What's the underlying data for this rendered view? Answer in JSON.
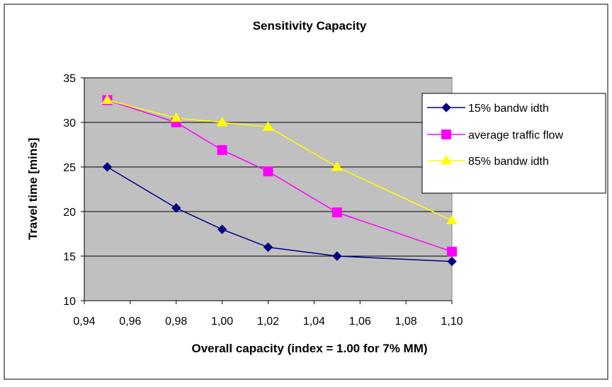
{
  "chart_data": {
    "type": "line",
    "title": "Sensitivity Capacity",
    "xlabel": "Overall capacity (index = 1.00 for 7% MM)",
    "ylabel": "Travel time [mins]",
    "xlim": [
      0.94,
      1.1
    ],
    "ylim": [
      10,
      35
    ],
    "xticks": [
      "0,94",
      "0,96",
      "0,98",
      "1,00",
      "1,02",
      "1,04",
      "1,06",
      "1,08",
      "1,10"
    ],
    "yticks": [
      "10",
      "15",
      "20",
      "25",
      "30",
      "35"
    ],
    "xtick_values": [
      0.94,
      0.96,
      0.98,
      1.0,
      1.02,
      1.04,
      1.06,
      1.08,
      1.1
    ],
    "ytick_values": [
      10,
      15,
      20,
      25,
      30,
      35
    ],
    "x": [
      0.95,
      0.98,
      1.0,
      1.02,
      1.05,
      1.1
    ],
    "grid": "horizontal",
    "plot_background": "#c0c0c0",
    "legend_position": "right",
    "series": [
      {
        "name": "15% bandw idth",
        "color": "#000080",
        "marker": "diamond",
        "values": [
          25.0,
          20.4,
          18.0,
          16.0,
          15.0,
          14.4
        ]
      },
      {
        "name": "average traffic flow",
        "color": "#ff00ff",
        "marker": "square",
        "values": [
          32.5,
          30.0,
          26.9,
          24.5,
          19.9,
          15.5
        ]
      },
      {
        "name": "85% bandw idth",
        "color": "#ffff00",
        "marker": "triangle",
        "values": [
          32.5,
          30.5,
          30.0,
          29.5,
          25.0,
          19.0
        ]
      }
    ]
  }
}
